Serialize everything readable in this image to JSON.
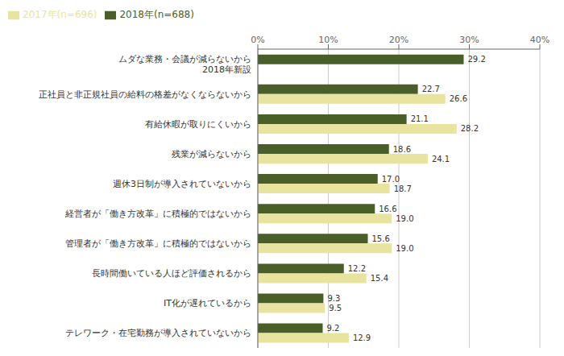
{
  "chart_data": {
    "type": "bar",
    "orientation": "horizontal",
    "categories": [
      "テレワーク・在宅勤務が導入されていないから",
      "IT化が遅れているから",
      "長時間働いている人ほど評価されるから",
      "管理者が「働き方改革」に積極的ではないから",
      "経営者が「働き方改革」に積極的ではないから",
      "週休3日制が導入されていないから",
      "残業が減らないから",
      "有給休暇が取りにくいから",
      "正社員と非正規社員の給料の格差がなくならないから",
      "ムダな業務・会議が減らないから\n　2018年新設"
    ],
    "series": [
      {
        "name": "2018年(n=688)",
        "color": "#4a5e2a",
        "values": [
          9.2,
          9.3,
          12.2,
          15.6,
          16.6,
          17.0,
          18.6,
          21.1,
          22.7,
          29.2
        ],
        "value_labels": [
          "9.2",
          "9.3",
          "12.2",
          "15.6",
          "16.6",
          "17.0",
          "18.6",
          "21.1",
          "22.7",
          "29.2"
        ]
      },
      {
        "name": "2017年(n=696)",
        "color": "#e8e4a0",
        "values": [
          12.9,
          9.5,
          15.4,
          19.0,
          19.0,
          18.7,
          24.1,
          28.2,
          26.6,
          null
        ],
        "value_labels": [
          "12.9",
          "9.5",
          "15.4",
          "19.0",
          "19.0",
          "18.7",
          "24.1",
          "28.2",
          "26.6",
          null
        ]
      }
    ],
    "xlim": [
      0,
      40
    ],
    "xticks": [
      {
        "value": 0,
        "label": "0%"
      },
      {
        "value": 10,
        "label": "10%"
      },
      {
        "value": 20,
        "label": "20%"
      },
      {
        "value": 30,
        "label": "30%"
      },
      {
        "value": 40,
        "label": "40%"
      }
    ],
    "grid": true,
    "legend": "top left",
    "data_labels": true
  }
}
